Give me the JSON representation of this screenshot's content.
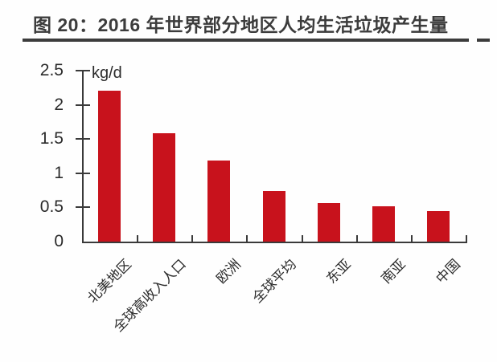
{
  "header": {
    "title": "图 20：2016 年世界部分地区人均生活垃圾产生量"
  },
  "chart_data": {
    "type": "bar",
    "title": "图 20：2016 年世界部分地区人均生活垃圾产生量",
    "unit_label": "kg/d",
    "categories": [
      "北美地区",
      "全球高收入人口",
      "欧洲",
      "全球平均",
      "东亚",
      "南亚",
      "中国"
    ],
    "values": [
      2.21,
      1.58,
      1.18,
      0.74,
      0.56,
      0.52,
      0.45
    ],
    "xlabel": "",
    "ylabel": "kg/d",
    "ylim": [
      0,
      2.5
    ],
    "ytick_step": 0.5,
    "ytick_labels": [
      "0",
      "0.5",
      "1",
      "1.5",
      "2",
      "2.5"
    ],
    "grid": false,
    "legend": "none",
    "colors": {
      "bar": "#c8121c",
      "axis": "#3a3a3a",
      "text": "#2b2b2b",
      "title": "#3c3c3c",
      "background": "#fefefe"
    }
  }
}
